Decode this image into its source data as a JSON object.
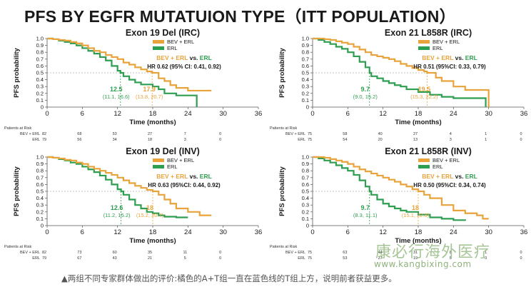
{
  "page_title": "PFS BY EGFR MUTATUION TYPE（ITT POPULATION）",
  "footnote": "▲两组不同专家群体做出的评价:橘色的A+T组一直在蓝色线的T组上方，说明前者获益更多。",
  "watermark": {
    "cn": "康必行海外医疗",
    "url": "www.kangbixing.com"
  },
  "colors": {
    "bev": "#e8a33a",
    "erl": "#2e9e50",
    "text": "#1a1a1a"
  },
  "chart_data": [
    {
      "type": "line",
      "title": "Exon 19 Del (IRC)",
      "xlabel": "Time (months)",
      "ylabel": "PFS probability",
      "xlim": [
        0,
        36
      ],
      "ylim": [
        0,
        1.0
      ],
      "xticks": [
        "0",
        "6",
        "12",
        "18",
        "24",
        "30",
        "36"
      ],
      "yticks": [
        "0",
        "0.1",
        "0.2",
        "0.3",
        "0.4",
        "0.5",
        "0.6",
        "0.7",
        "0.8",
        "0.9",
        "1.0"
      ],
      "legend": [
        "BEV + ERL",
        "ERL"
      ],
      "comparison": {
        "bev": "BEV + ERL",
        "vs": "vs.",
        "erl": "ERL"
      },
      "hr_text": "HR 0.62 (95% CI: 0.41, 0.92)",
      "median_erl": {
        "value": "12.5",
        "ci": "(11.1, 16.6)",
        "x": 12.5
      },
      "median_bev": {
        "value": "17.9",
        "ci": "(13.8, 20.7)",
        "x": 17.9
      },
      "series": [
        {
          "name": "BEV + ERL",
          "x": [
            0,
            1,
            2,
            3,
            4,
            5,
            6,
            7,
            8,
            9,
            10,
            11,
            12,
            13,
            14,
            15,
            16,
            17,
            17.9,
            19,
            20,
            21,
            22,
            24,
            26,
            28
          ],
          "y": [
            1,
            0.99,
            0.98,
            0.97,
            0.95,
            0.93,
            0.9,
            0.86,
            0.82,
            0.8,
            0.76,
            0.73,
            0.7,
            0.65,
            0.62,
            0.58,
            0.55,
            0.52,
            0.5,
            0.42,
            0.38,
            0.32,
            0.28,
            0.24,
            0.24,
            0.24
          ]
        },
        {
          "name": "ERL",
          "x": [
            0,
            1,
            2,
            3,
            4,
            5,
            6,
            7,
            8,
            9,
            10,
            11,
            12,
            12.5,
            13,
            14,
            15,
            16,
            18,
            19,
            20,
            22,
            24,
            25,
            25.5
          ],
          "y": [
            1,
            0.99,
            0.97,
            0.95,
            0.93,
            0.9,
            0.86,
            0.82,
            0.78,
            0.73,
            0.68,
            0.6,
            0.53,
            0.5,
            0.45,
            0.4,
            0.36,
            0.33,
            0.3,
            0.26,
            0.2,
            0.17,
            0.17,
            0.17,
            0
          ]
        }
      ],
      "risk": {
        "label": "Patients at Risk",
        "rows": [
          {
            "name": "BEV + ERL",
            "values": [
              "82",
              "68",
              "53",
              "27",
              "7",
              "0"
            ]
          },
          {
            "name": "ERL",
            "values": [
              "79",
              "56",
              "34",
              "18",
              "3",
              "0"
            ]
          }
        ],
        "times": [
          0,
          6,
          12,
          18,
          24,
          30
        ]
      }
    },
    {
      "type": "line",
      "title": "Exon 21 L858R (IRC)",
      "xlabel": "Time (months)",
      "ylabel": "PFS probability",
      "xlim": [
        0,
        36
      ],
      "ylim": [
        0,
        1.0
      ],
      "xticks": [
        "0",
        "6",
        "12",
        "18",
        "24",
        "30",
        "36"
      ],
      "yticks": [
        "0",
        "0.1",
        "0.2",
        "0.3",
        "0.4",
        "0.5",
        "0.6",
        "0.7",
        "0.8",
        "0.9",
        "1.0"
      ],
      "legend": [
        "BEV + ERL",
        "ERL"
      ],
      "comparison": {
        "bev": "BEV + ERL",
        "vs": "vs.",
        "erl": "ERL"
      },
      "hr_text": "HR 0.51 (95%CI: 0.33, 0.79)",
      "median_erl": {
        "value": "9.7",
        "ci": "(9.0, 15.2)",
        "x": 9.7
      },
      "median_bev": {
        "value": "19.5",
        "ci": "(15.3, 22.2)",
        "x": 19.5
      },
      "series": [
        {
          "name": "BEV + ERL",
          "x": [
            0,
            1,
            2,
            3,
            4,
            5,
            6,
            7,
            8,
            9,
            10,
            11,
            12,
            13,
            14,
            15,
            16,
            17,
            18,
            19,
            19.5,
            21,
            22,
            24,
            26,
            28,
            29.8,
            30
          ],
          "y": [
            1,
            1,
            0.99,
            0.98,
            0.96,
            0.94,
            0.92,
            0.88,
            0.84,
            0.8,
            0.76,
            0.74,
            0.72,
            0.7,
            0.67,
            0.63,
            0.6,
            0.57,
            0.54,
            0.52,
            0.5,
            0.43,
            0.38,
            0.3,
            0.25,
            0.25,
            0.25,
            0
          ]
        },
        {
          "name": "ERL",
          "x": [
            0,
            1,
            2,
            3,
            4,
            5,
            6,
            7,
            8,
            9,
            9.7,
            10,
            11,
            12,
            13,
            14,
            15,
            16,
            18,
            20,
            22,
            24,
            26,
            28,
            29.5
          ],
          "y": [
            1,
            0.98,
            0.95,
            0.92,
            0.88,
            0.85,
            0.8,
            0.74,
            0.66,
            0.58,
            0.5,
            0.45,
            0.42,
            0.38,
            0.35,
            0.32,
            0.3,
            0.26,
            0.22,
            0.18,
            0.15,
            0.13,
            0.13,
            0.13,
            0
          ]
        }
      ],
      "risk": {
        "label": "Patients at Risk",
        "rows": [
          {
            "name": "BEV + ERL",
            "values": [
              "75",
              "58",
              "40",
              "27",
              "4",
              "1",
              "0"
            ]
          },
          {
            "name": "ERL",
            "values": [
              "75",
              "54",
              "20",
              "13",
              "3",
              "1",
              "0"
            ]
          }
        ],
        "times": [
          0,
          6,
          12,
          18,
          24,
          30,
          36
        ]
      }
    },
    {
      "type": "line",
      "title": "Exon 19 Del (INV)",
      "xlabel": "Time (months)",
      "ylabel": "PFS probability",
      "xlim": [
        0,
        36
      ],
      "ylim": [
        0,
        1.0
      ],
      "xticks": [
        "0",
        "6",
        "12",
        "18",
        "24",
        "30",
        "36"
      ],
      "yticks": [
        "0",
        "0.1",
        "0.2",
        "0.3",
        "0.4",
        "0.5",
        "0.6",
        "0.7",
        "0.8",
        "0.9",
        "1.0"
      ],
      "legend": [
        "BEV + ERL",
        "ERL"
      ],
      "comparison": {
        "bev": "BEV + ERL",
        "vs": "vs.",
        "erl": "ERL"
      },
      "hr_text": "HR 0.63 (95%CI: 0.44, 0.92)",
      "median_erl": {
        "value": "12.6",
        "ci": "(11.2, 15.2)",
        "x": 12.6
      },
      "median_bev": {
        "value": "18",
        "ci": "(15.2, 20.7)",
        "x": 18
      },
      "series": [
        {
          "name": "BEV + ERL",
          "x": [
            0,
            1,
            2,
            3,
            4,
            5,
            6,
            7,
            8,
            9,
            10,
            11,
            12,
            13,
            14,
            15,
            16,
            17,
            18,
            19,
            20,
            21,
            22,
            24,
            26,
            28
          ],
          "y": [
            1,
            0.99,
            0.98,
            0.96,
            0.95,
            0.92,
            0.9,
            0.86,
            0.83,
            0.8,
            0.77,
            0.74,
            0.7,
            0.66,
            0.62,
            0.58,
            0.55,
            0.52,
            0.5,
            0.45,
            0.38,
            0.32,
            0.25,
            0.2,
            0.15,
            0.15
          ]
        },
        {
          "name": "ERL",
          "x": [
            0,
            1,
            2,
            3,
            4,
            5,
            6,
            7,
            8,
            9,
            10,
            11,
            12,
            12.6,
            13,
            14,
            15,
            16,
            17,
            18,
            19,
            20,
            22,
            24
          ],
          "y": [
            1,
            0.99,
            0.97,
            0.95,
            0.92,
            0.9,
            0.86,
            0.82,
            0.78,
            0.73,
            0.67,
            0.6,
            0.53,
            0.5,
            0.45,
            0.38,
            0.3,
            0.25,
            0.2,
            0.18,
            0.15,
            0.13,
            0.12,
            0.12
          ]
        }
      ],
      "risk": {
        "label": "Patients at Risk",
        "rows": [
          {
            "name": "BEV + ERL",
            "values": [
              "82",
              "73",
              "60",
              "35",
              "11",
              "0"
            ]
          },
          {
            "name": "ERL",
            "values": [
              "79",
              "67",
              "43",
              "21",
              "5",
              "0"
            ]
          }
        ],
        "times": [
          0,
          6,
          12,
          18,
          24,
          30
        ]
      }
    },
    {
      "type": "line",
      "title": "Exon 21 L858R (INV)",
      "xlabel": "Time (months)",
      "ylabel": "PFS probability",
      "xlim": [
        0,
        36
      ],
      "ylim": [
        0,
        1.0
      ],
      "xticks": [
        "0",
        "6",
        "12",
        "18",
        "24",
        "30",
        "36"
      ],
      "yticks": [
        "0",
        "0.1",
        "0.2",
        "0.3",
        "0.4",
        "0.5",
        "0.6",
        "0.7",
        "0.8",
        "0.9",
        "1.0"
      ],
      "legend": [
        "BEV + ERL",
        "ERL"
      ],
      "comparison": {
        "bev": "BEV + ERL",
        "vs": "vs.",
        "erl": "ERL"
      },
      "hr_text": "HR 0.50 (95%CI: 0.34, 0.74)",
      "median_erl": {
        "value": "9.7",
        "ci": "(8.3, 11.1)",
        "x": 9.7
      },
      "median_bev": {
        "value": "18",
        "ci": "(15.1, 22.8)",
        "x": 18
      },
      "series": [
        {
          "name": "BEV + ERL",
          "x": [
            0,
            1,
            2,
            3,
            4,
            5,
            6,
            7,
            8,
            9,
            10,
            11,
            12,
            13,
            14,
            15,
            16,
            17,
            18,
            19,
            20,
            22,
            24,
            26,
            28,
            29,
            30
          ],
          "y": [
            1,
            1,
            0.99,
            0.97,
            0.95,
            0.93,
            0.9,
            0.86,
            0.82,
            0.79,
            0.76,
            0.73,
            0.7,
            0.67,
            0.64,
            0.6,
            0.57,
            0.53,
            0.5,
            0.45,
            0.4,
            0.3,
            0.22,
            0.18,
            0.15,
            0.1,
            0.1
          ]
        },
        {
          "name": "ERL",
          "x": [
            0,
            1,
            2,
            3,
            4,
            5,
            6,
            7,
            8,
            9,
            9.7,
            10,
            11,
            12,
            13,
            14,
            15,
            16,
            18,
            20,
            22,
            24,
            26
          ],
          "y": [
            1,
            0.98,
            0.95,
            0.92,
            0.88,
            0.84,
            0.8,
            0.74,
            0.66,
            0.57,
            0.5,
            0.45,
            0.38,
            0.32,
            0.28,
            0.25,
            0.22,
            0.2,
            0.16,
            0.12,
            0.1,
            0.08,
            0.07
          ]
        }
      ],
      "risk": {
        "label": "Patients at Risk",
        "rows": [
          {
            "name": "BEV + ERL",
            "values": [
              "75",
              "63",
              "44",
              "31",
              "8",
              "1",
              "0"
            ]
          },
          {
            "name": "ERL",
            "values": [
              "75",
              "53",
              "27",
              "19",
              "5",
              "0",
              "0"
            ]
          }
        ],
        "times": [
          0,
          6,
          12,
          18,
          24,
          30,
          36
        ]
      }
    }
  ]
}
